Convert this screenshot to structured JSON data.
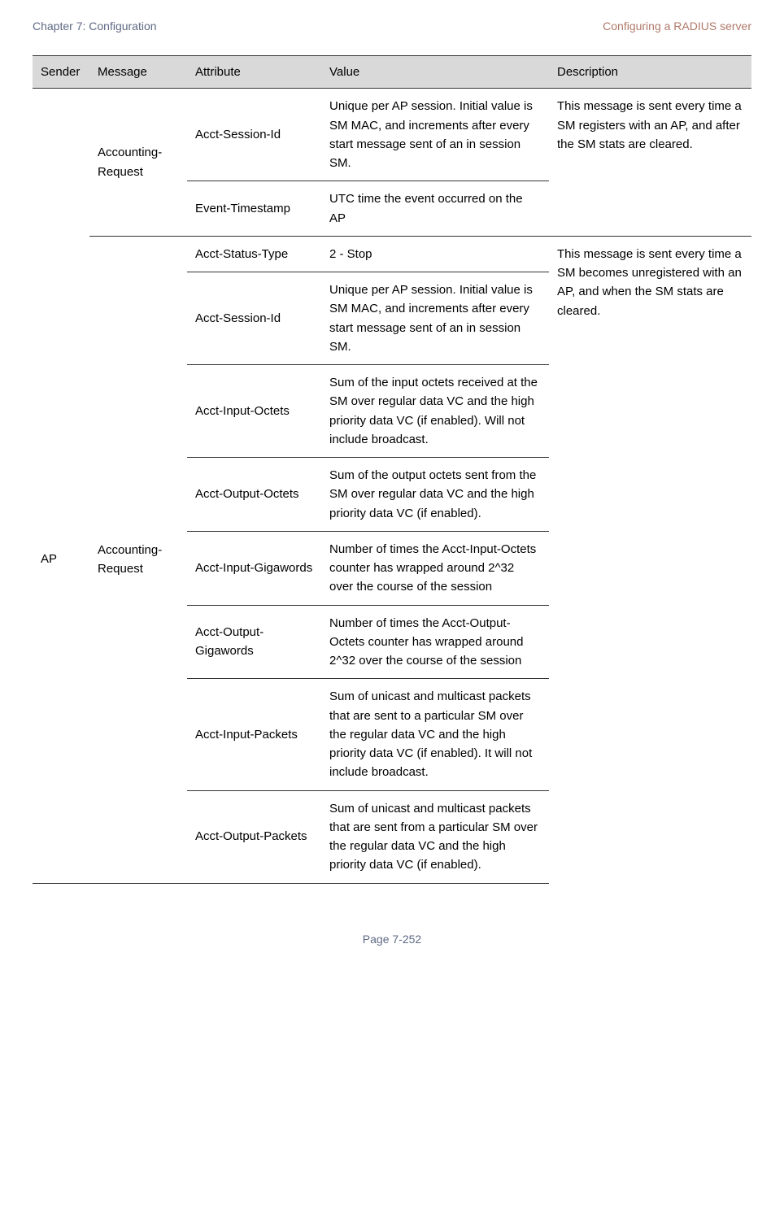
{
  "header": {
    "left": "Chapter 7:  Configuration",
    "right": "Configuring a RADIUS server"
  },
  "table": {
    "headers": {
      "sender": "Sender",
      "message": "Message",
      "attribute": "Attribute",
      "value": "Value",
      "description": "Description"
    },
    "row1": {
      "message": "Accounting-Request",
      "attribute": "Acct-Session-Id",
      "value": "Unique per AP session. Initial value is SM MAC, and increments after every start message sent of an in session SM.",
      "description": "This message is sent every time a SM registers with an AP, and after the SM stats are cleared."
    },
    "row2": {
      "attribute": "Event-Timestamp",
      "value": "UTC time the event occurred on the AP"
    },
    "row3": {
      "sender": "AP",
      "message": "Accounting-Request",
      "attribute": "Acct-Status-Type",
      "value": "2 - Stop",
      "description": "This message is sent every time a SM becomes unregistered with an AP, and when the SM stats are cleared."
    },
    "row4": {
      "attribute": "Acct-Session-Id",
      "value": "Unique per AP session. Initial value is SM MAC, and increments after every start message sent of an in session SM."
    },
    "row5": {
      "attribute": "Acct-Input-Octets",
      "value": "Sum of the input octets received at the SM over regular data VC and the high priority data VC (if enabled). Will not include broadcast."
    },
    "row6": {
      "attribute": "Acct-Output-Octets",
      "value": "Sum of the output octets sent from the SM over regular data VC and the high priority data VC (if enabled)."
    },
    "row7": {
      "attribute": "Acct-Input-Gigawords",
      "value": "Number of times the Acct-Input-Octets counter has wrapped around 2^32 over the course of the session"
    },
    "row8": {
      "attribute": "Acct-Output-Gigawords",
      "value": "Number of times the Acct-Output-Octets counter has wrapped around 2^32 over the course of the session"
    },
    "row9": {
      "attribute": "Acct-Input-Packets",
      "value": "Sum of unicast and multicast packets that are sent to a particular SM over the regular data VC and the high priority data VC (if enabled). It will not include broadcast."
    },
    "row10": {
      "attribute": "Acct-Output-Packets",
      "value": "Sum of unicast and multicast packets that are sent from a particular SM over the regular data VC and the high priority data VC (if enabled)."
    }
  },
  "footer": "Page 7-252"
}
